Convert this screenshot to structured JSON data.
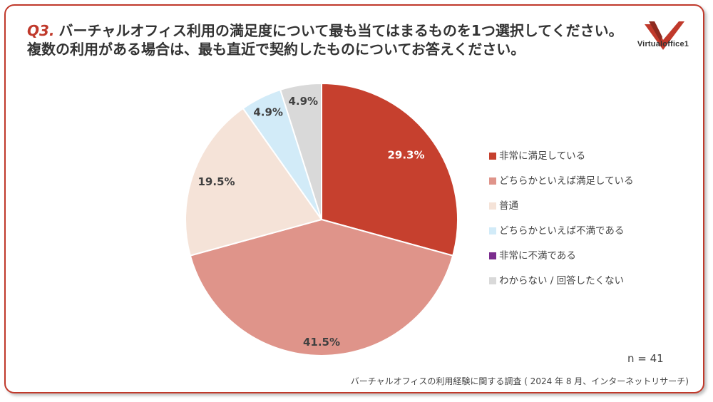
{
  "header": {
    "q_label": "Q3.",
    "line1": "バーチャルオフィス利用の満足度について最も当てはまるものを1つ選択してください。",
    "line2": "複数の利用がある場合は、最も直近で契約したものについてお答えください。"
  },
  "logo": {
    "text": "Virtualoffice1",
    "icon": "vo1-logo-icon",
    "color": "#c0392b"
  },
  "chart_data": {
    "type": "pie",
    "title": "",
    "legend_position": "right",
    "slices": [
      {
        "label": "非常に満足している",
        "value": 29.3,
        "display": "29.3%",
        "color": "#c6402e",
        "label_color": "#ffffff"
      },
      {
        "label": "どちらかといえば満足している",
        "value": 41.5,
        "display": "41.5%",
        "color": "#df948a",
        "label_color": "#404040"
      },
      {
        "label": "普通",
        "value": 19.5,
        "display": "19.5%",
        "color": "#f5e3d8",
        "label_color": "#404040"
      },
      {
        "label": "どちらかといえば不満である",
        "value": 4.9,
        "display": "4.9%",
        "color": "#d2ebf8",
        "label_color": "#404040"
      },
      {
        "label": "非常に不満である",
        "value": 0.0,
        "display": "",
        "color": "#7b2d8e",
        "label_color": "#404040"
      },
      {
        "label": "わからない / 回答したくない",
        "value": 4.9,
        "display": "4.9%",
        "color": "#d9d9d9",
        "label_color": "#404040"
      }
    ]
  },
  "footer": {
    "n": "n = 41",
    "source": "バーチャルオフィスの利用経験に関する調査 ( 2024 年 8 月、インターネットリサーチ)"
  }
}
